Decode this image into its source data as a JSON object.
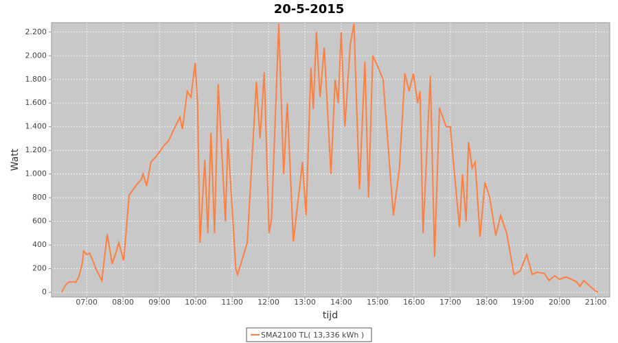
{
  "chart_data": {
    "type": "line",
    "title": "20-5-2015",
    "x_label": "tijd",
    "y_label": "Watt",
    "x": [
      "06:19",
      "06:25",
      "06:30",
      "06:37",
      "06:42",
      "06:47",
      "06:53",
      "06:55",
      "07:00",
      "07:05",
      "07:10",
      "07:16",
      "07:20",
      "07:25",
      "07:34",
      "07:42",
      "07:48",
      "07:53",
      "08:01",
      "08:05",
      "08:10",
      "08:14",
      "08:24",
      "08:30",
      "08:33",
      "08:39",
      "08:46",
      "08:55",
      "09:09",
      "09:15",
      "09:26",
      "09:34",
      "09:38",
      "09:46",
      "09:52",
      "09:59",
      "10:03",
      "10:07",
      "10:15",
      "10:20",
      "10:25",
      "10:31",
      "10:37",
      "10:49",
      "10:53",
      "11:06",
      "11:09",
      "11:25",
      "11:40",
      "11:46",
      "11:53",
      "12:01",
      "12:05",
      "12:17",
      "12:25",
      "12:31",
      "12:41",
      "12:46",
      "12:56",
      "13:02",
      "13:10",
      "13:14",
      "13:19",
      "13:25",
      "13:32",
      "13:43",
      "13:50",
      "13:55",
      "14:00",
      "14:06",
      "14:15",
      "14:21",
      "14:30",
      "14:39",
      "14:45",
      "14:52",
      "15:01",
      "15:09",
      "15:26",
      "15:36",
      "15:45",
      "15:52",
      "15:59",
      "16:06",
      "16:10",
      "16:15",
      "16:27",
      "16:34",
      "16:42",
      "16:53",
      "17:00",
      "17:06",
      "17:15",
      "17:20",
      "17:26",
      "17:30",
      "17:36",
      "17:41",
      "17:49",
      "17:57",
      "18:05",
      "18:15",
      "18:23",
      "18:33",
      "18:45",
      "18:55",
      "19:06",
      "19:15",
      "19:23",
      "19:35",
      "19:43",
      "19:52",
      "20:00",
      "20:11",
      "20:28",
      "20:34",
      "20:40",
      "20:53",
      "21:00",
      "21:04"
    ],
    "series": [
      {
        "name": "SMA2100 TL( 13,336 kWh )",
        "color": "#ff7f3f",
        "values": [
          0,
          60,
          85,
          90,
          85,
          130,
          250,
          350,
          320,
          330,
          270,
          190,
          150,
          100,
          490,
          240,
          330,
          420,
          270,
          500,
          820,
          850,
          920,
          950,
          1000,
          900,
          1100,
          1150,
          1250,
          1280,
          1400,
          1480,
          1380,
          1700,
          1650,
          1940,
          1600,
          420,
          1120,
          500,
          1350,
          500,
          1760,
          600,
          1300,
          200,
          150,
          420,
          1780,
          1300,
          1860,
          500,
          620,
          2270,
          1000,
          1600,
          430,
          650,
          1100,
          650,
          1900,
          1550,
          2200,
          1650,
          2070,
          1000,
          1800,
          1600,
          2200,
          1400,
          2100,
          2270,
          870,
          1950,
          800,
          2000,
          1900,
          1800,
          650,
          1050,
          1850,
          1700,
          1850,
          1600,
          1700,
          500,
          1830,
          300,
          1560,
          1400,
          1400,
          1050,
          550,
          1000,
          600,
          1270,
          1050,
          1100,
          470,
          930,
          800,
          480,
          650,
          500,
          150,
          180,
          320,
          150,
          170,
          160,
          100,
          140,
          110,
          130,
          90,
          50,
          100,
          40,
          10,
          0
        ]
      }
    ],
    "xlim": [
      "06:02",
      "21:23"
    ],
    "xticks": [
      "07:00",
      "08:00",
      "09:00",
      "10:00",
      "11:00",
      "12:00",
      "13:00",
      "14:00",
      "15:00",
      "16:00",
      "17:00",
      "18:00",
      "19:00",
      "20:00",
      "21:00"
    ],
    "ylim": [
      -40,
      2280
    ],
    "yticks": [
      0,
      200,
      400,
      600,
      800,
      {
        "value": 1000,
        "label": "1.000"
      },
      {
        "value": 1200,
        "label": "1.200"
      },
      {
        "value": 1400,
        "label": "1.400"
      },
      {
        "value": 1600,
        "label": "1.600"
      },
      {
        "value": 1800,
        "label": "1.800"
      },
      {
        "value": 2000,
        "label": "2.000"
      },
      {
        "value": 2200,
        "label": "2.200"
      }
    ],
    "grid": true,
    "legend": "bottom"
  }
}
